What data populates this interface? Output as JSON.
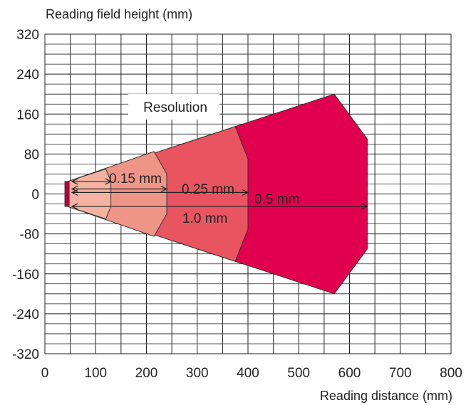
{
  "chart_data": {
    "type": "area",
    "ylabel": "Reading field height (mm)",
    "xlabel": "Reading distance (mm)",
    "xlim": [
      0,
      800
    ],
    "ylim": [
      -320,
      320
    ],
    "x_ticks": [
      0,
      100,
      200,
      300,
      400,
      500,
      600,
      700,
      800
    ],
    "y_ticks": [
      320,
      240,
      160,
      80,
      0,
      -80,
      -160,
      -240,
      -320
    ],
    "grid": true,
    "legend_title": "Resolution",
    "series": [
      {
        "name": "1.0 mm",
        "color": "#e0004d",
        "points": [
          [
            45,
            25
          ],
          [
            570,
            200
          ],
          [
            635,
            110
          ],
          [
            635,
            -110
          ],
          [
            570,
            -200
          ],
          [
            45,
            -25
          ]
        ],
        "arrow": {
          "from": 45,
          "to": 635,
          "y": -25
        }
      },
      {
        "name": "0.5 mm",
        "color": "#e85560",
        "points": [
          [
            45,
            25
          ],
          [
            375,
            135
          ],
          [
            400,
            70
          ],
          [
            400,
            -70
          ],
          [
            375,
            -135
          ],
          [
            45,
            -25
          ]
        ],
        "arrow": {
          "from": 45,
          "to": 400,
          "y": 3
        }
      },
      {
        "name": "0.25 mm",
        "color": "#ef9587",
        "points": [
          [
            45,
            25
          ],
          [
            215,
            85
          ],
          [
            240,
            40
          ],
          [
            240,
            -40
          ],
          [
            215,
            -85
          ],
          [
            45,
            -25
          ]
        ],
        "arrow": {
          "from": 45,
          "to": 240,
          "y": 10
        }
      },
      {
        "name": "0.15 mm",
        "color": "#f4b3a0",
        "points": [
          [
            45,
            25
          ],
          [
            120,
            50
          ],
          [
            130,
            25
          ],
          [
            130,
            -25
          ],
          [
            120,
            -50
          ],
          [
            45,
            -25
          ]
        ],
        "arrow": {
          "from": 45,
          "to": 130,
          "y": 25
        }
      }
    ]
  }
}
